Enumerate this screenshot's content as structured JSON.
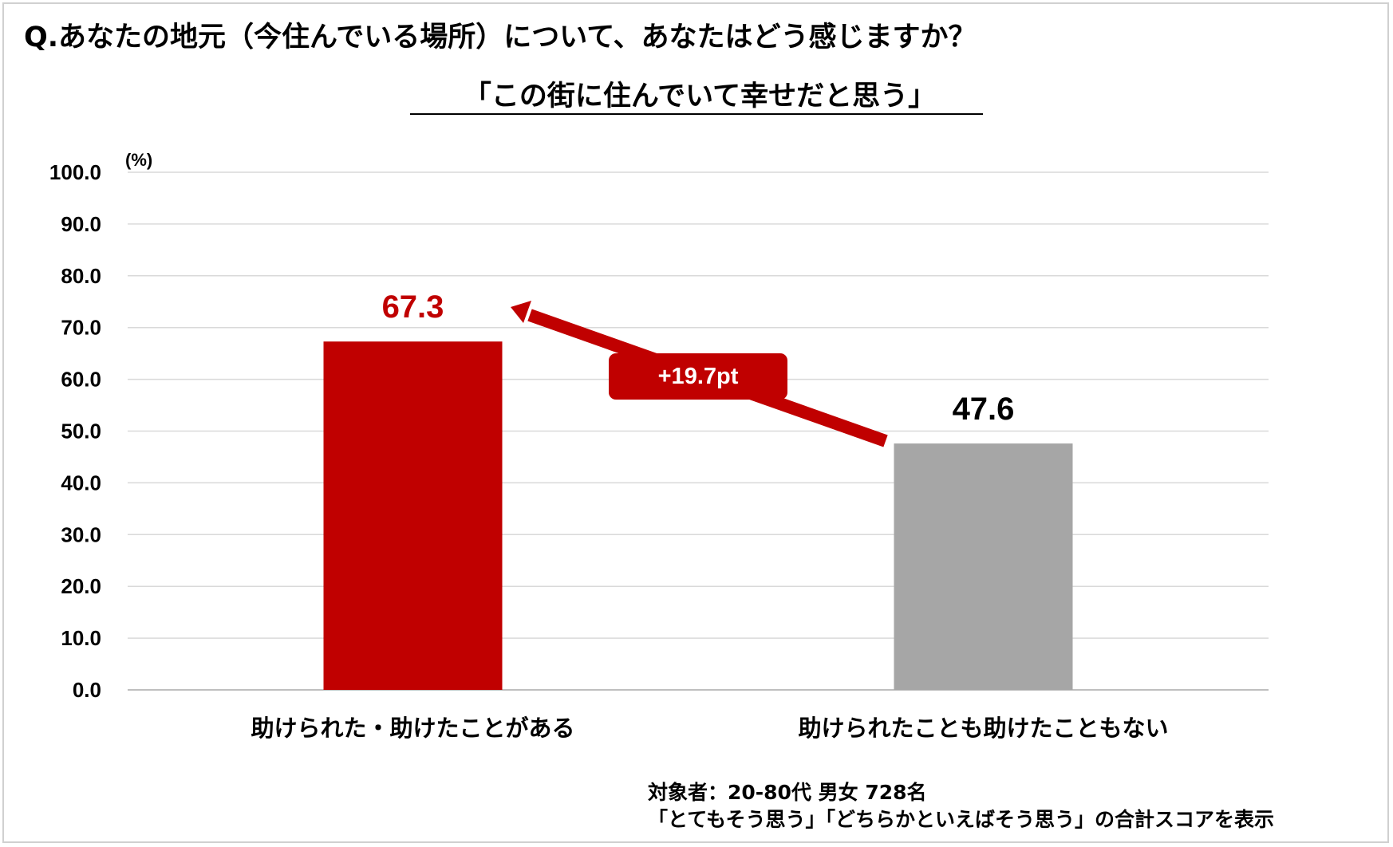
{
  "question": "Q.あなたの地元（今住んでいる場所）について、あなたはどう感じますか？",
  "subtitle": "「この街に住んでいて幸せだと思う」",
  "chart_data": {
    "type": "bar",
    "categories": [
      "助けられた・助けたことがある",
      "助けられたことも助けたこともない"
    ],
    "values": [
      67.3,
      47.6
    ],
    "value_labels": [
      "67.3",
      "47.6"
    ],
    "colors": [
      "#c00000",
      "#a6a6a6"
    ],
    "value_label_colors": [
      "#c00000",
      "#000000"
    ],
    "ylabel": "(%)",
    "ylim": [
      0,
      100
    ],
    "yticks": [
      "0.0",
      "10.0",
      "20.0",
      "30.0",
      "40.0",
      "50.0",
      "60.0",
      "70.0",
      "80.0",
      "90.0",
      "100.0"
    ],
    "grid": true,
    "annotation": {
      "text": "+19.7pt",
      "color": "#c00000"
    }
  },
  "notes": [
    "対象者：20-80代 男女 728名",
    "「とてもそう思う」「どちらかといえばそう思う」の合計スコアを表示"
  ]
}
